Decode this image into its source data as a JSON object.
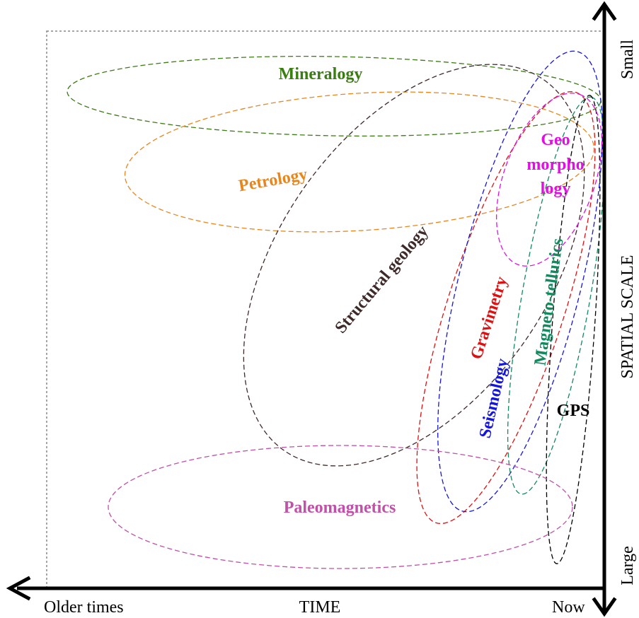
{
  "colors": {
    "mineralogy": "#3a7d12",
    "petrology": "#e8861e",
    "structural_geology": "#3f2a2a",
    "seismology": "#1515e0",
    "gravimetry": "#e01010",
    "geomorphology": "#e010e0",
    "magnetotellurics": "#128a5e",
    "gps": "#000000",
    "paleomagnetics": "#c050a8",
    "frame": "#888888"
  },
  "axes": {
    "time": {
      "title": "TIME",
      "left_end": "Older times",
      "right_end": "Now"
    },
    "spatial": {
      "title": "SPATIAL SCALE",
      "top_end": "Small",
      "bottom_end": "Large"
    }
  },
  "disciplines": {
    "mineralogy": "Mineralogy",
    "petrology": "Petrology",
    "structural_geology": "Structural geology",
    "gravimetry": "Gravimetry",
    "seismology": "Seismology",
    "magnetotellurics": "Magneto-tellurics",
    "geomorphology": [
      "Geo",
      "morpho",
      "logy"
    ],
    "gps": "GPS",
    "paleomagnetics": "Paleomagnetics"
  }
}
